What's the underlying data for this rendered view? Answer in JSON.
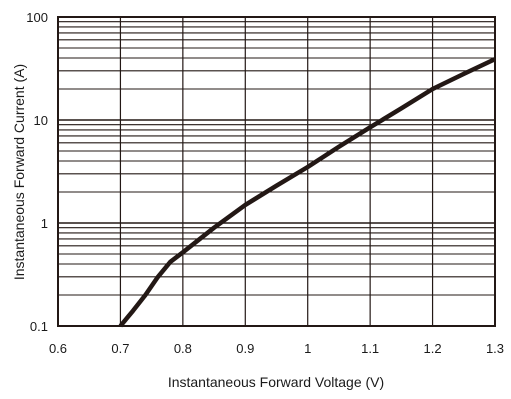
{
  "chart_data": {
    "type": "line",
    "title": "",
    "xlabel": "Instantaneous Forward Voltage (V)",
    "ylabel": "Instantaneous Forward Current (A)",
    "xlim": [
      0.6,
      1.3
    ],
    "ylim": [
      0.1,
      100
    ],
    "yscale": "log",
    "grid": true,
    "legend": "none",
    "x_ticks": [
      {
        "value": 0.6,
        "label": "0.6"
      },
      {
        "value": 0.7,
        "label": "0.7"
      },
      {
        "value": 0.8,
        "label": "0.8"
      },
      {
        "value": 0.9,
        "label": "0.9"
      },
      {
        "value": 1.0,
        "label": "1"
      },
      {
        "value": 1.1,
        "label": "1.1"
      },
      {
        "value": 1.2,
        "label": "1.2"
      },
      {
        "value": 1.3,
        "label": "1.3"
      }
    ],
    "y_ticks": [
      {
        "value": 0.1,
        "label": "0.1"
      },
      {
        "value": 1,
        "label": "1"
      },
      {
        "value": 10,
        "label": "10"
      },
      {
        "value": 100,
        "label": "100"
      }
    ],
    "colors": {
      "line": "#231815",
      "grid": "#231815",
      "frame": "#231815"
    },
    "series": [
      {
        "x": [
          0.7,
          0.72,
          0.74,
          0.76,
          0.78,
          0.8,
          0.85,
          0.9,
          0.95,
          1.0,
          1.05,
          1.1,
          1.15,
          1.2,
          1.25,
          1.3
        ],
        "y": [
          0.1,
          0.14,
          0.2,
          0.3,
          0.42,
          0.52,
          0.9,
          1.5,
          2.3,
          3.5,
          5.5,
          8.5,
          13,
          20,
          28,
          39
        ]
      }
    ]
  }
}
